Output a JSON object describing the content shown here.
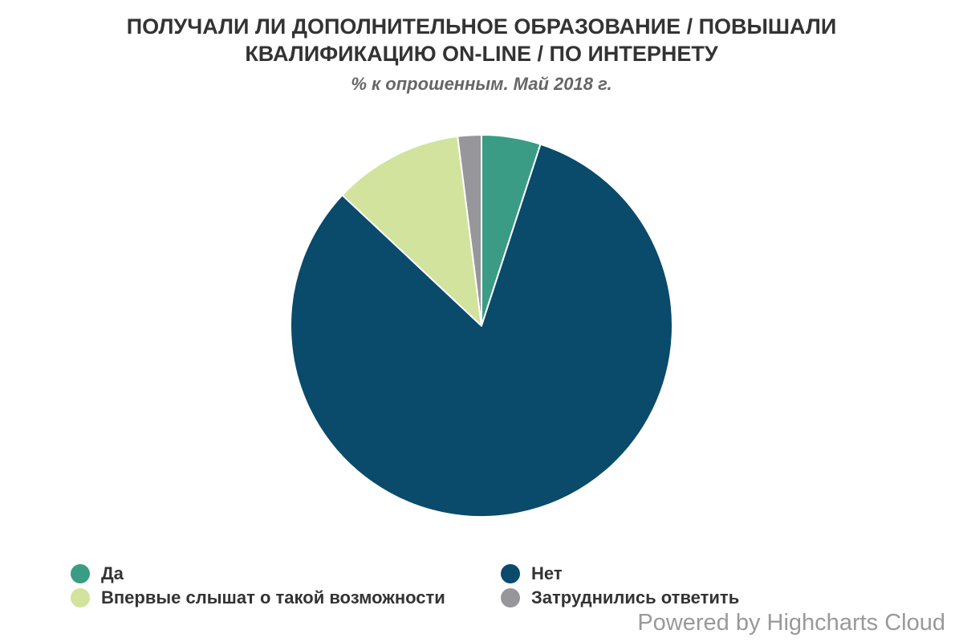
{
  "chart_data": {
    "type": "pie",
    "title": "ПОЛУЧАЛИ ЛИ ДОПОЛНИТЕЛЬНОЕ ОБРАЗОВАНИЕ / ПОВЫШАЛИ КВАЛИФИКАЦИЮ ON-LINE / ПО ИНТЕРНЕТУ",
    "title_lines": [
      "ПОЛУЧАЛИ ЛИ ДОПОЛНИТЕЛЬНОЕ ОБРАЗОВАНИЕ / ПОВЫШАЛИ",
      "КВАЛИФИКАЦИЮ ON-LINE / ПО ИНТЕРНЕТУ"
    ],
    "subtitle": "% к опрошенным. Май 2018 г.",
    "slices": [
      {
        "label": "Да",
        "value": 5,
        "color": "#3a9c85"
      },
      {
        "label": "Нет",
        "value": 82,
        "color": "#0a4a6b"
      },
      {
        "label": "Впервые слышат о такой возможности",
        "value": 11,
        "color": "#d1e39d"
      },
      {
        "label": "Затруднились ответить",
        "value": 2,
        "color": "#97979b"
      }
    ],
    "legend_position": "bottom"
  },
  "credits": "Powered by Highcharts Cloud"
}
